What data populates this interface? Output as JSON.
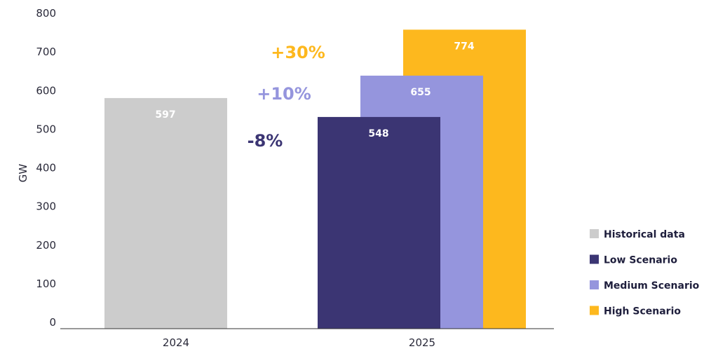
{
  "chart_data": {
    "type": "bar",
    "ylabel": "GW",
    "xlabel": "",
    "ylim": [
      0,
      800
    ],
    "yticks": [
      0,
      100,
      200,
      300,
      400,
      500,
      600,
      700,
      800
    ],
    "categories": [
      "2024",
      "2025"
    ],
    "grid": false,
    "legend_position": "right",
    "series": [
      {
        "name": "Historical data",
        "category": "2024",
        "value": 597,
        "color": "#cccccc"
      },
      {
        "name": "Low Scenario",
        "category": "2025",
        "value": 548,
        "color": "#3b3573"
      },
      {
        "name": "Medium Scenario",
        "category": "2025",
        "value": 655,
        "color": "#9595dd"
      },
      {
        "name": "High Scenario",
        "category": "2025",
        "value": 774,
        "color": "#fdb81e"
      }
    ],
    "annotations": [
      {
        "text": "+30%",
        "series": "High Scenario",
        "color": "#fdb81e"
      },
      {
        "text": "+10%",
        "series": "Medium Scenario",
        "color": "#9595dd"
      },
      {
        "text": "-8%",
        "series": "Low Scenario",
        "color": "#3b3573"
      }
    ]
  }
}
